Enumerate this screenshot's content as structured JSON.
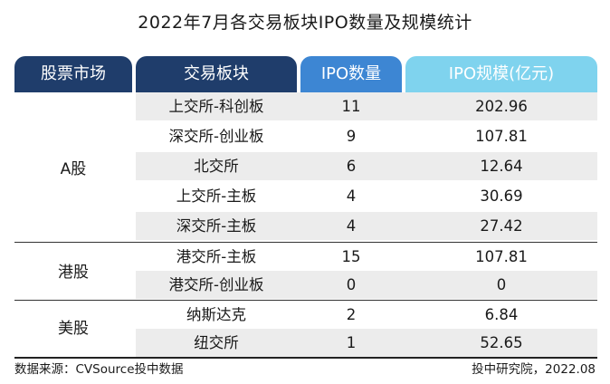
{
  "title": "2022年7月各交易板块IPO数量及规模统计",
  "headers": {
    "market": "股票市场",
    "board": "交易板块",
    "count": "IPO数量",
    "scale": "IPO规模(亿元)"
  },
  "groups": [
    {
      "market": "A股"
    },
    {
      "market": "港股"
    },
    {
      "market": "美股"
    }
  ],
  "rows": [
    {
      "board": "上交所-科创板",
      "count": "11",
      "scale": "202.96"
    },
    {
      "board": "深交所-创业板",
      "count": "9",
      "scale": "107.81"
    },
    {
      "board": "北交所",
      "count": "6",
      "scale": "12.64"
    },
    {
      "board": "上交所-主板",
      "count": "4",
      "scale": "30.69"
    },
    {
      "board": "深交所-主板",
      "count": "4",
      "scale": "27.42"
    },
    {
      "board": "港交所-主板",
      "count": "15",
      "scale": "107.81"
    },
    {
      "board": "港交所-创业板",
      "count": "0",
      "scale": "0"
    },
    {
      "board": "纳斯达克",
      "count": "2",
      "scale": "6.84"
    },
    {
      "board": "纽交所",
      "count": "1",
      "scale": "52.65"
    }
  ],
  "colors": {
    "header_dark": "#1f3d6b",
    "header_mid": "#3d86d3",
    "header_light": "#7fd3ee",
    "row_shade": "#ececec"
  },
  "footer": {
    "source": "数据来源：CVSource投中数据",
    "credit": "投中研究院，2022.08"
  }
}
